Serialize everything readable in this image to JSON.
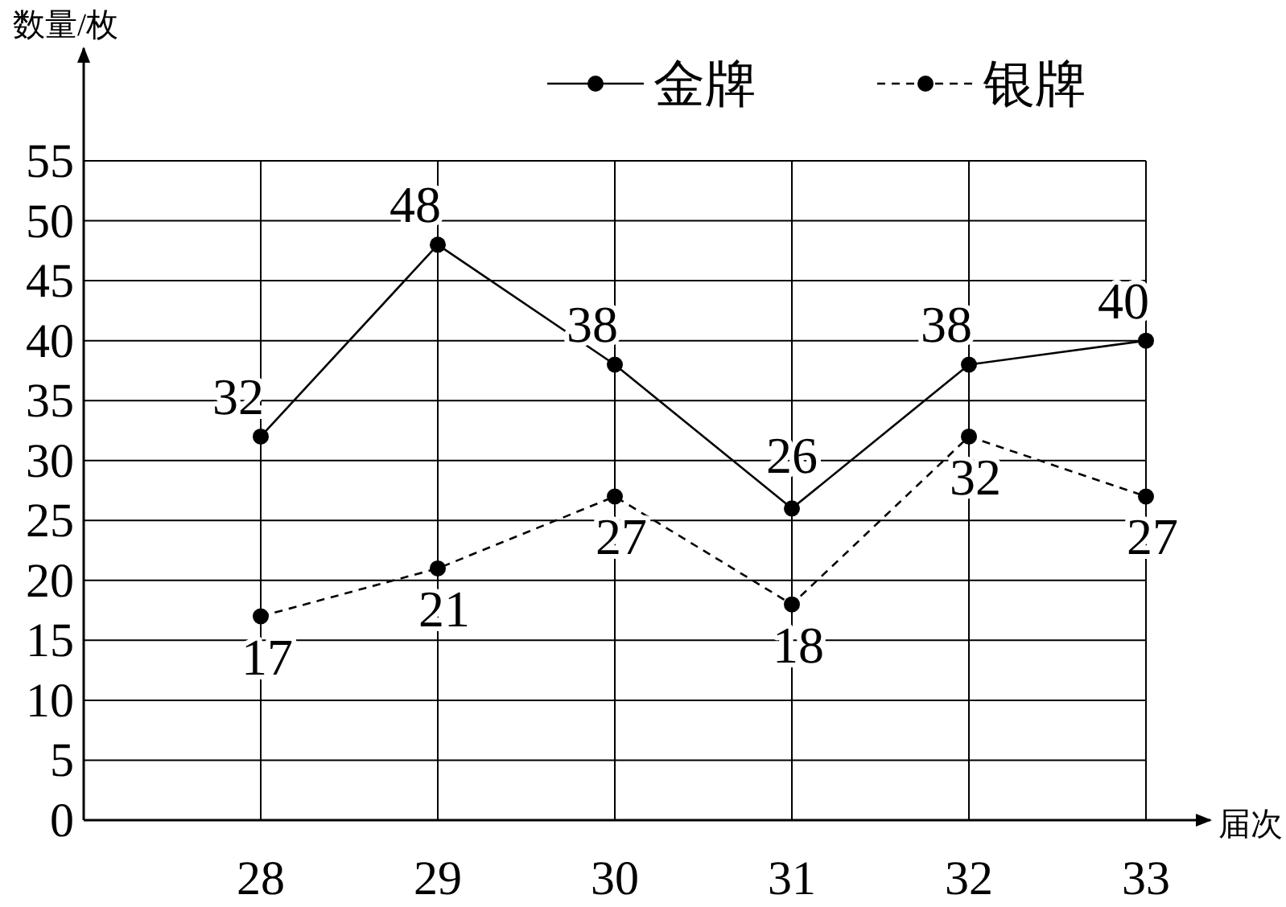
{
  "chart_data": {
    "type": "line",
    "xlabel": "届次",
    "ylabel": "数量/枚",
    "x": [
      28,
      29,
      30,
      31,
      32,
      33
    ],
    "xlim": [
      27,
      33
    ],
    "xticks": [
      28,
      29,
      30,
      31,
      32,
      33
    ],
    "ylim": [
      0,
      55
    ],
    "yticks": [
      0,
      5,
      10,
      15,
      20,
      25,
      30,
      35,
      40,
      45,
      50,
      55
    ],
    "series": [
      {
        "name": "金牌",
        "color": "#000000",
        "values": [
          32,
          48,
          38,
          26,
          38,
          40
        ],
        "line_style": "solid"
      },
      {
        "name": "银牌",
        "color": "#000000",
        "values": [
          17,
          21,
          27,
          18,
          32,
          27
        ],
        "line_style": "dashed"
      }
    ],
    "marker": "circle",
    "grid": true,
    "legend": "top right",
    "data_labels": true
  }
}
